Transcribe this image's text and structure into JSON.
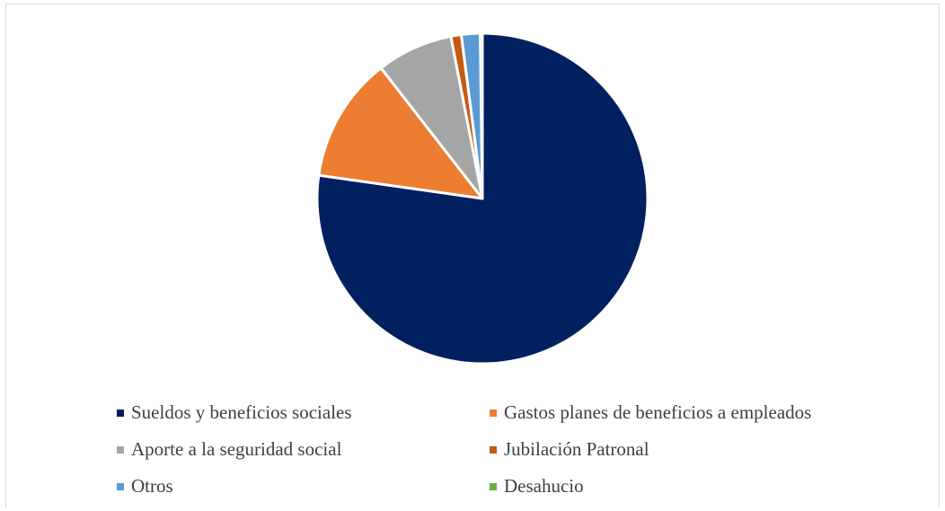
{
  "chart_data": {
    "type": "pie",
    "title": "",
    "start_angle_deg": 0,
    "direction": "clockwise",
    "legend_position": "bottom",
    "series": [
      {
        "values": [
          75.7,
          12.0,
          7.3,
          1.0,
          1.8,
          0.2
        ],
        "labels": [
          "Sueldos y beneficios sociales",
          "Gastos planes de beneficios a empleados",
          "Aporte a la seguridad social",
          "Jubilación Patronal",
          "Otros",
          "Desahucio"
        ],
        "colors": [
          "#002060",
          "#ED7D31",
          "#A5A5A5",
          "#C55A11",
          "#5B9BD5",
          "#70AD47"
        ]
      }
    ],
    "legend": [
      {
        "label": "Sueldos y beneficios sociales",
        "color": "#002060"
      },
      {
        "label": "Gastos planes de beneficios a empleados",
        "color": "#ED7D31"
      },
      {
        "label": "Aporte a la seguridad social",
        "color": "#A5A5A5"
      },
      {
        "label": "Jubilación Patronal",
        "color": "#C55A11"
      },
      {
        "label": "Otros",
        "color": "#5B9BD5"
      },
      {
        "label": "Desahucio",
        "color": "#70AD47"
      }
    ]
  }
}
